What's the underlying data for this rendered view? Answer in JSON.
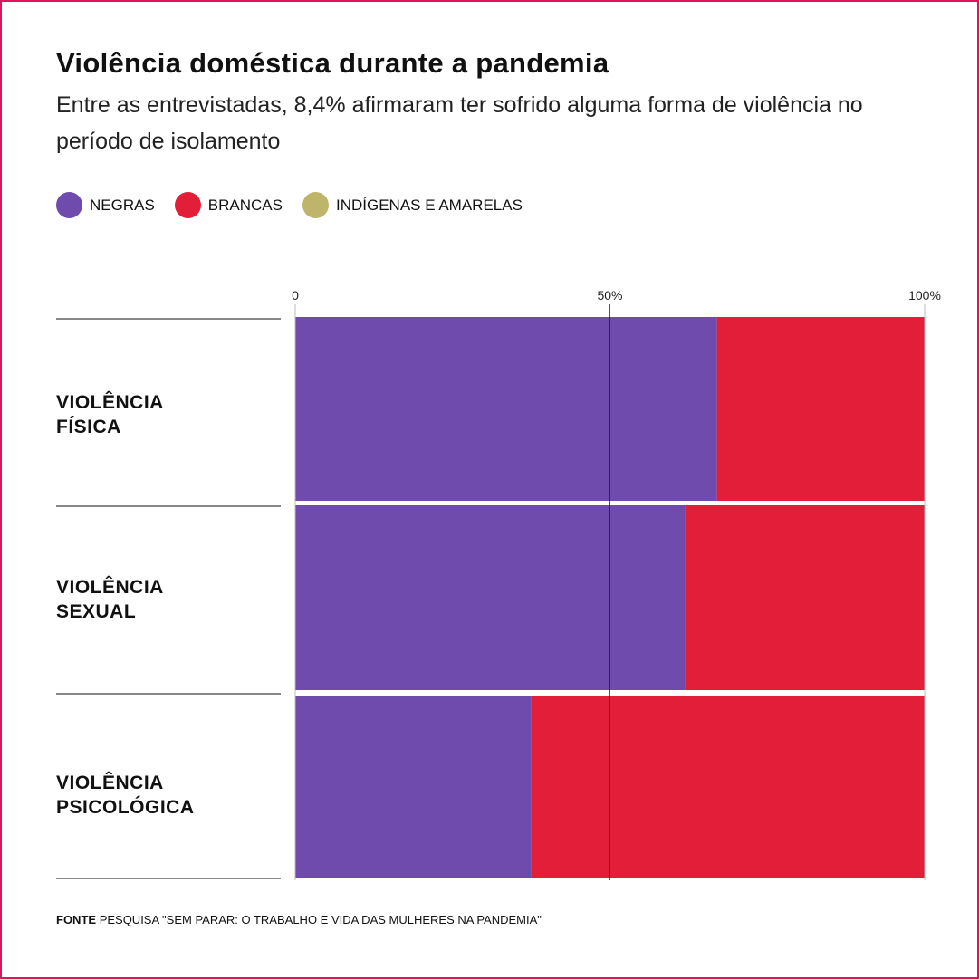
{
  "title": "Violência doméstica durante a pandemia",
  "subtitle": "Entre as entrevistadas, 8,4% afirmaram ter sofrido alguma forma de violência no período de isolamento",
  "colors": {
    "negras": "#6f4bad",
    "brancas": "#e31e39",
    "indigenas_amarelas": "#bfb56a",
    "border": "#e0135c"
  },
  "chart_data": {
    "type": "bar",
    "orientation": "horizontal",
    "stacked": true,
    "categories": [
      "VIOLÊNCIA FÍSICA",
      "VIOLÊNCIA SEXUAL",
      "VIOLÊNCIA PSICOLÓGICA"
    ],
    "category_lines": [
      [
        "VIOLÊNCIA",
        "FÍSICA"
      ],
      [
        "VIOLÊNCIA",
        "SEXUAL"
      ],
      [
        "VIOLÊNCIA",
        "PSICOLÓGICA"
      ]
    ],
    "series": [
      {
        "name": "NEGRAS",
        "values": [
          67,
          62,
          37.5
        ]
      },
      {
        "name": "BRANCAS",
        "values": [
          33,
          38,
          62.5
        ]
      },
      {
        "name": "INDÍGENAS E AMARELAS",
        "values": [
          0,
          0,
          0
        ]
      }
    ],
    "xlim": [
      0,
      100
    ],
    "xticks": [
      0,
      50,
      100
    ],
    "xtick_labels": [
      "0",
      "50%",
      "100%"
    ],
    "legend_position": "top-left"
  },
  "source": {
    "label": "FONTE",
    "text": "PESQUISA \"SEM PARAR: O TRABALHO E VIDA DAS MULHERES NA PANDEMIA\""
  }
}
